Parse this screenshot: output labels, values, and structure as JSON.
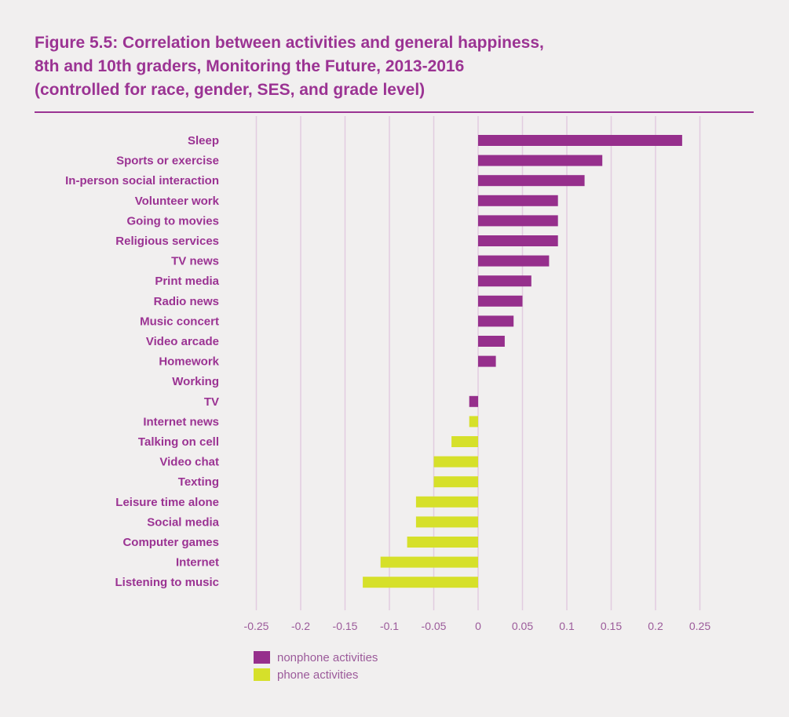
{
  "title": {
    "line1": "Figure 5.5: Correlation between activities and general happiness,",
    "line2": "8th and 10th graders, Monitoring the Future, 2013-2016",
    "line3": "(controlled for race, gender, SES, and grade level)"
  },
  "colors": {
    "nonphone": "#962f8c",
    "phone": "#d6e02a",
    "title": "#9b3393",
    "grid": "#e2cce0"
  },
  "chart_data": {
    "type": "bar",
    "orientation": "horizontal",
    "title": "Figure 5.5: Correlation between activities and general happiness, 8th and 10th graders, Monitoring the Future, 2013-2016 (controlled for race, gender, SES, and grade level)",
    "xlabel": "",
    "ylabel": "",
    "xlim": [
      -0.25,
      0.25
    ],
    "xticks": [
      "-0.25",
      "-0.2",
      "-0.15",
      "-0.1",
      "-0.05",
      "0",
      "0.05",
      "0.1",
      "0.15",
      "0.2",
      "0.25"
    ],
    "grid": true,
    "legend_position": "bottom-left",
    "legend": [
      {
        "key": "nonphone",
        "label": "nonphone activities"
      },
      {
        "key": "phone",
        "label": "phone activities"
      }
    ],
    "bars": [
      {
        "category": "Sleep",
        "value": 0.23,
        "group": "nonphone"
      },
      {
        "category": "Sports or exercise",
        "value": 0.14,
        "group": "nonphone"
      },
      {
        "category": "In-person social interaction",
        "value": 0.12,
        "group": "nonphone"
      },
      {
        "category": "Volunteer work",
        "value": 0.09,
        "group": "nonphone"
      },
      {
        "category": "Going to movies",
        "value": 0.09,
        "group": "nonphone"
      },
      {
        "category": "Religious services",
        "value": 0.09,
        "group": "nonphone"
      },
      {
        "category": "TV news",
        "value": 0.08,
        "group": "nonphone"
      },
      {
        "category": "Print media",
        "value": 0.06,
        "group": "nonphone"
      },
      {
        "category": "Radio news",
        "value": 0.05,
        "group": "nonphone"
      },
      {
        "category": "Music concert",
        "value": 0.04,
        "group": "nonphone"
      },
      {
        "category": "Video arcade",
        "value": 0.03,
        "group": "nonphone"
      },
      {
        "category": "Homework",
        "value": 0.02,
        "group": "nonphone"
      },
      {
        "category": "Working",
        "value": 0,
        "group": "nonphone"
      },
      {
        "category": "TV",
        "value": -0.01,
        "group": "nonphone"
      },
      {
        "category": "Internet news",
        "value": -0.01,
        "group": "phone"
      },
      {
        "category": "Talking on cell",
        "value": -0.03,
        "group": "phone"
      },
      {
        "category": "Video chat",
        "value": -0.05,
        "group": "phone"
      },
      {
        "category": "Texting",
        "value": -0.05,
        "group": "phone"
      },
      {
        "category": "Leisure time alone",
        "value": -0.07,
        "group": "phone"
      },
      {
        "category": "Social media",
        "value": -0.07,
        "group": "phone"
      },
      {
        "category": "Computer games",
        "value": -0.08,
        "group": "phone"
      },
      {
        "category": "Internet",
        "value": -0.11,
        "group": "phone"
      },
      {
        "category": "Listening to music",
        "value": -0.13,
        "group": "phone"
      }
    ]
  }
}
